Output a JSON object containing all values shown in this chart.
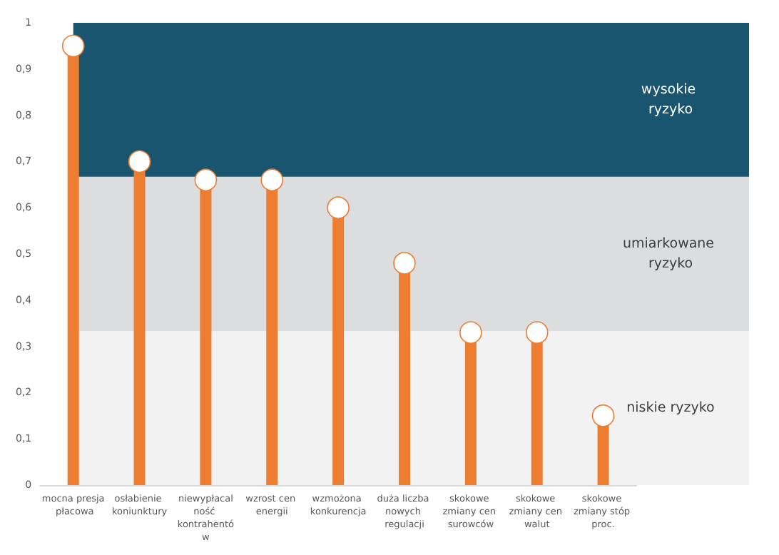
{
  "chart_data": {
    "type": "lollipop",
    "categories": [
      "mocna presja płacowa",
      "osłabienie koniunktury",
      "niewypłacalność kontrahentów",
      "wzrost cen energii",
      "wzmożona konkurencja",
      "duża liczba nowych regulacji",
      "skokowe zmiany cen surowców",
      "skokowe zmiany cen walut",
      "skokowe zmiany stóp proc."
    ],
    "values": [
      0.95,
      0.7,
      0.66,
      0.66,
      0.6,
      0.48,
      0.33,
      0.33,
      0.15
    ],
    "color": "#ed7d31",
    "marker": "circle",
    "ylim": [
      0,
      1
    ],
    "yticks": [
      0,
      {
        "value": 0.1,
        "label": "0,1"
      },
      {
        "value": 0.2,
        "label": "0,2"
      },
      {
        "value": 0.3,
        "label": "0,3"
      },
      {
        "value": 0.4,
        "label": "0,4"
      },
      {
        "value": 0.5,
        "label": "0,5"
      },
      {
        "value": 0.6,
        "label": "0,6"
      },
      {
        "value": 0.7,
        "label": "0,7"
      },
      {
        "value": 0.8,
        "label": "0,8"
      },
      {
        "value": 0.9,
        "label": "0,9"
      },
      1
    ],
    "bands": [
      {
        "axis": "y",
        "from": 0,
        "to": 0.333,
        "label": "niskie ryzyko",
        "color": "#f2f2f2"
      },
      {
        "axis": "y",
        "from": 0.333,
        "to": 0.667,
        "label": "umiarkowane ryzyko",
        "color": "#dcdddf"
      },
      {
        "axis": "y",
        "from": 0.667,
        "to": 1,
        "label": "wysokie ryzyko",
        "color": "#1a5570"
      }
    ]
  }
}
